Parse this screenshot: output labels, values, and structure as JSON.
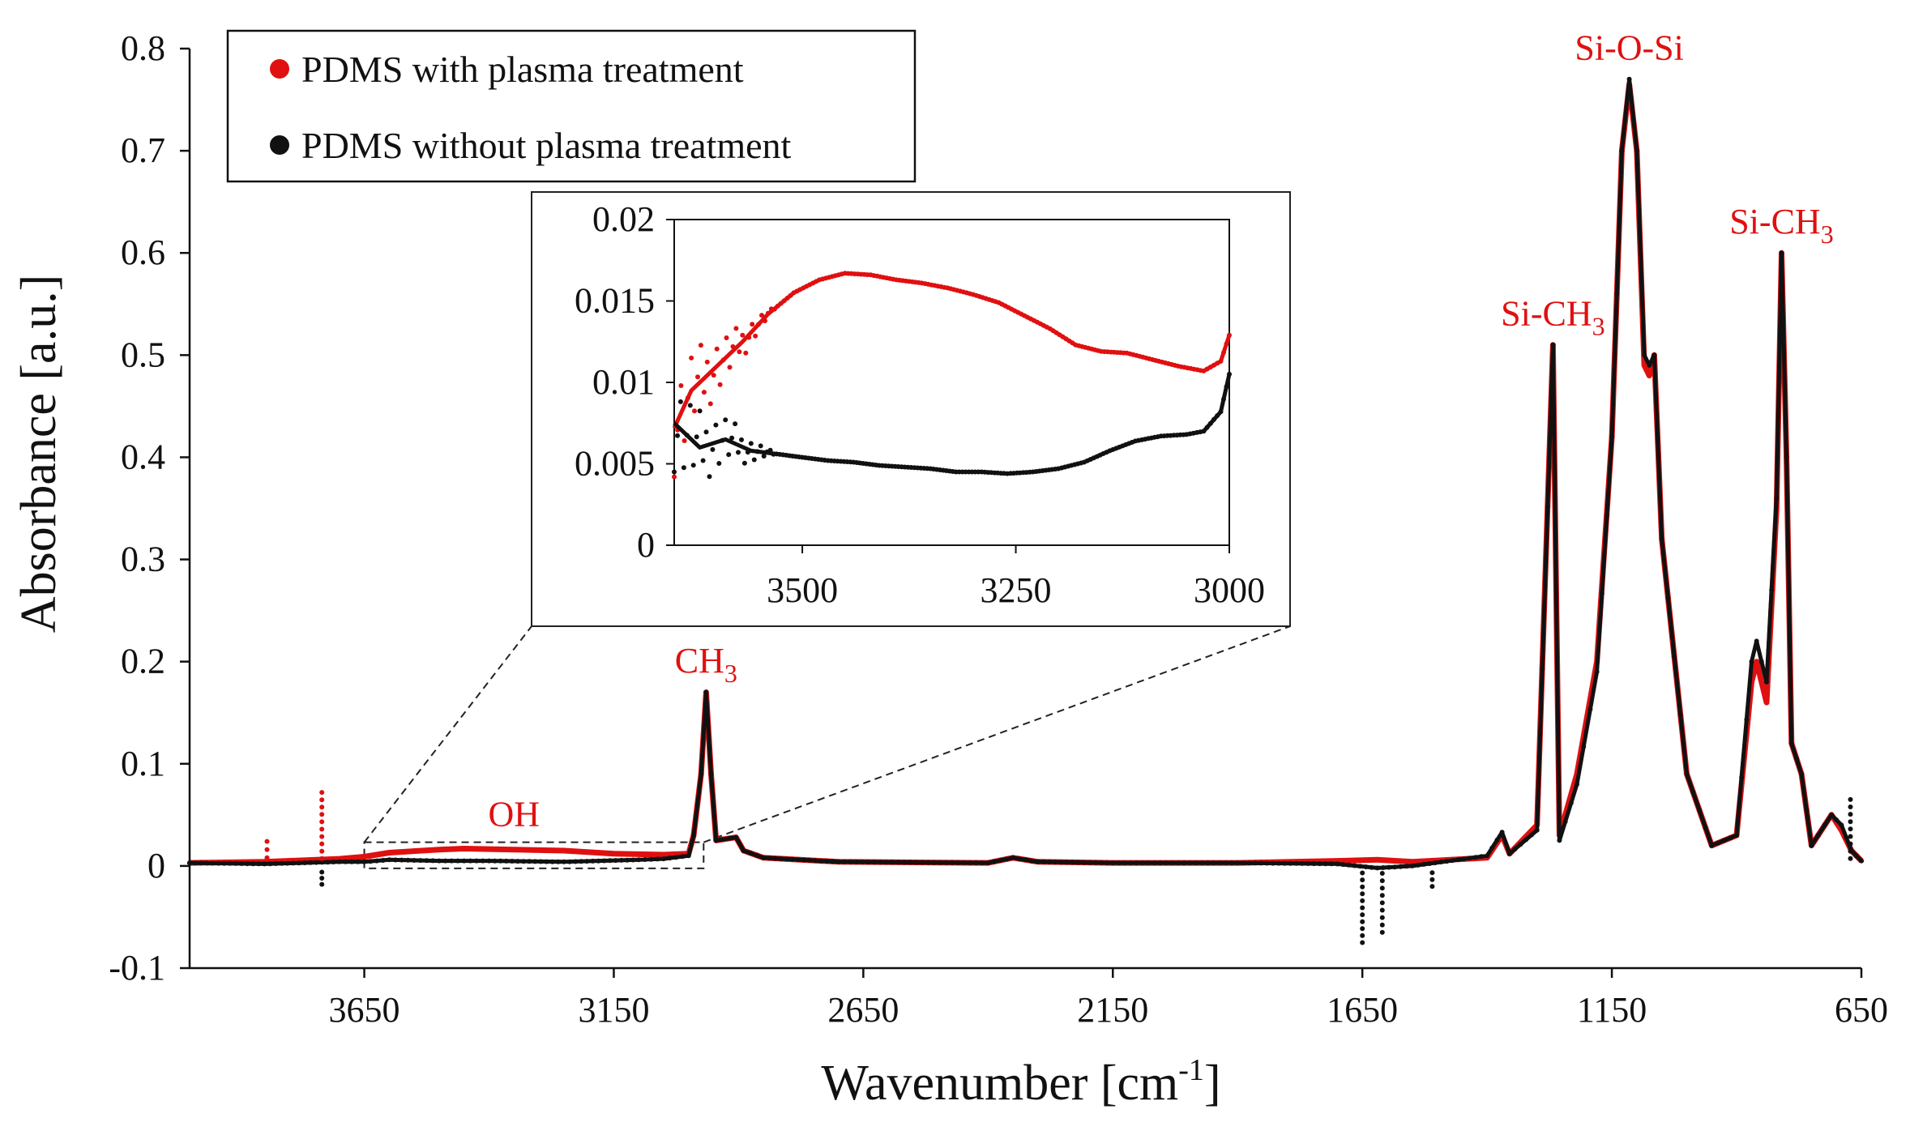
{
  "chart_data": {
    "type": "line",
    "title": "",
    "xlabel_main": "Wavenumber [cm",
    "xlabel_sup": "-1",
    "xlabel_end": "]",
    "ylabel": "Absorbance [a.u.]",
    "xlim": [
      4000,
      650
    ],
    "ylim": [
      -0.1,
      0.8
    ],
    "x_ticks": [
      3650,
      3150,
      2650,
      2150,
      1650,
      1150,
      650
    ],
    "y_ticks": [
      -0.1,
      0,
      0.1,
      0.2,
      0.3,
      0.4,
      0.5,
      0.6,
      0.7,
      0.8
    ],
    "y_tick_labels": [
      "-0.1",
      "0",
      "0.1",
      "0.2",
      "0.3",
      "0.4",
      "0.5",
      "0.6",
      "0.7",
      "0.8"
    ],
    "colors": {
      "plasma": "#e01010",
      "untreated": "#111111"
    },
    "series": [
      {
        "name": "PDMS with plasma treatment",
        "color": "#e01010",
        "points": [
          [
            4000,
            0.003
          ],
          [
            3850,
            0.004
          ],
          [
            3700,
            0.007
          ],
          [
            3650,
            0.009
          ],
          [
            3600,
            0.013
          ],
          [
            3500,
            0.016
          ],
          [
            3450,
            0.017
          ],
          [
            3350,
            0.016
          ],
          [
            3250,
            0.015
          ],
          [
            3150,
            0.012
          ],
          [
            3050,
            0.011
          ],
          [
            3000,
            0.012
          ],
          [
            2990,
            0.03
          ],
          [
            2975,
            0.09
          ],
          [
            2965,
            0.17
          ],
          [
            2955,
            0.09
          ],
          [
            2945,
            0.025
          ],
          [
            2905,
            0.028
          ],
          [
            2890,
            0.015
          ],
          [
            2850,
            0.008
          ],
          [
            2700,
            0.004
          ],
          [
            2400,
            0.003
          ],
          [
            2350,
            0.008
          ],
          [
            2300,
            0.004
          ],
          [
            2150,
            0.003
          ],
          [
            1900,
            0.003
          ],
          [
            1700,
            0.005
          ],
          [
            1620,
            0.006
          ],
          [
            1550,
            0.004
          ],
          [
            1400,
            0.008
          ],
          [
            1370,
            0.03
          ],
          [
            1355,
            0.012
          ],
          [
            1300,
            0.04
          ],
          [
            1268,
            0.51
          ],
          [
            1255,
            0.03
          ],
          [
            1220,
            0.09
          ],
          [
            1180,
            0.2
          ],
          [
            1150,
            0.42
          ],
          [
            1130,
            0.7
          ],
          [
            1115,
            0.765
          ],
          [
            1100,
            0.7
          ],
          [
            1085,
            0.49
          ],
          [
            1075,
            0.48
          ],
          [
            1065,
            0.5
          ],
          [
            1050,
            0.32
          ],
          [
            1000,
            0.09
          ],
          [
            950,
            0.02
          ],
          [
            900,
            0.03
          ],
          [
            870,
            0.18
          ],
          [
            860,
            0.2
          ],
          [
            850,
            0.18
          ],
          [
            840,
            0.16
          ],
          [
            820,
            0.35
          ],
          [
            810,
            0.6
          ],
          [
            800,
            0.4
          ],
          [
            790,
            0.12
          ],
          [
            770,
            0.09
          ],
          [
            750,
            0.02
          ],
          [
            710,
            0.05
          ],
          [
            690,
            0.035
          ],
          [
            670,
            0.015
          ],
          [
            650,
            0.005
          ]
        ]
      },
      {
        "name": "PDMS without plasma treatment",
        "color": "#111111",
        "points": [
          [
            4000,
            0.003
          ],
          [
            3850,
            0.002
          ],
          [
            3700,
            0.004
          ],
          [
            3650,
            0.004
          ],
          [
            3600,
            0.006
          ],
          [
            3500,
            0.005
          ],
          [
            3400,
            0.005
          ],
          [
            3250,
            0.004
          ],
          [
            3100,
            0.006
          ],
          [
            3050,
            0.007
          ],
          [
            3000,
            0.01
          ],
          [
            2990,
            0.03
          ],
          [
            2975,
            0.09
          ],
          [
            2965,
            0.17
          ],
          [
            2955,
            0.09
          ],
          [
            2945,
            0.025
          ],
          [
            2905,
            0.028
          ],
          [
            2890,
            0.015
          ],
          [
            2850,
            0.008
          ],
          [
            2700,
            0.004
          ],
          [
            2400,
            0.003
          ],
          [
            2350,
            0.008
          ],
          [
            2300,
            0.004
          ],
          [
            2150,
            0.003
          ],
          [
            1900,
            0.003
          ],
          [
            1700,
            0.002
          ],
          [
            1620,
            -0.002
          ],
          [
            1550,
            0.0
          ],
          [
            1400,
            0.01
          ],
          [
            1370,
            0.033
          ],
          [
            1355,
            0.012
          ],
          [
            1300,
            0.035
          ],
          [
            1268,
            0.51
          ],
          [
            1255,
            0.025
          ],
          [
            1220,
            0.08
          ],
          [
            1180,
            0.19
          ],
          [
            1150,
            0.42
          ],
          [
            1130,
            0.7
          ],
          [
            1115,
            0.77
          ],
          [
            1100,
            0.7
          ],
          [
            1085,
            0.5
          ],
          [
            1075,
            0.49
          ],
          [
            1065,
            0.5
          ],
          [
            1050,
            0.32
          ],
          [
            1000,
            0.09
          ],
          [
            950,
            0.02
          ],
          [
            900,
            0.03
          ],
          [
            870,
            0.2
          ],
          [
            860,
            0.22
          ],
          [
            850,
            0.2
          ],
          [
            840,
            0.18
          ],
          [
            820,
            0.36
          ],
          [
            810,
            0.6
          ],
          [
            800,
            0.4
          ],
          [
            790,
            0.12
          ],
          [
            770,
            0.09
          ],
          [
            750,
            0.02
          ],
          [
            710,
            0.05
          ],
          [
            690,
            0.04
          ],
          [
            670,
            0.015
          ],
          [
            650,
            0.005
          ]
        ]
      }
    ],
    "outliers": [
      {
        "series": "PDMS with plasma treatment",
        "x": 3845,
        "y": 0.024
      },
      {
        "series": "PDMS with plasma treatment",
        "x": 3735,
        "y": 0.072
      },
      {
        "series": "PDMS without plasma treatment",
        "x": 3735,
        "y": -0.018
      },
      {
        "series": "PDMS without plasma treatment",
        "x": 1650,
        "y": -0.075
      },
      {
        "series": "PDMS without plasma treatment",
        "x": 1610,
        "y": -0.065
      },
      {
        "series": "PDMS without plasma treatment",
        "x": 1510,
        "y": -0.02
      },
      {
        "series": "PDMS without plasma treatment",
        "x": 672,
        "y": 0.065
      }
    ],
    "peak_labels": [
      {
        "text": "OH",
        "sub": "",
        "x": 3350,
        "y": 0.025
      },
      {
        "text": "CH",
        "sub": "3",
        "x": 2965,
        "y": 0.175
      },
      {
        "text": "Si-CH",
        "sub": "3",
        "x": 1268,
        "y": 0.515
      },
      {
        "text": "Si-O-Si",
        "sub": "",
        "x": 1115,
        "y": 0.775
      },
      {
        "text": "Si-CH",
        "sub": "3",
        "x": 810,
        "y": 0.605
      }
    ],
    "zoom_region": {
      "x_range": [
        3650,
        2970
      ],
      "y_range": [
        0,
        0.02
      ]
    },
    "inset": {
      "xlim": [
        3650,
        3000
      ],
      "ylim": [
        0,
        0.02
      ],
      "x_ticks": [
        3500,
        3250,
        3000
      ],
      "y_ticks": [
        0,
        0.005,
        0.01,
        0.015,
        0.02
      ],
      "y_tick_labels": [
        "0",
        "0.005",
        "0.01",
        "0.015",
        "0.02"
      ],
      "series": [
        {
          "name": "PDMS with plasma treatment",
          "color": "#e01010",
          "points": [
            [
              3650,
              0.0072
            ],
            [
              3630,
              0.0095
            ],
            [
              3600,
              0.011
            ],
            [
              3570,
              0.0125
            ],
            [
              3540,
              0.0142
            ],
            [
              3510,
              0.0155
            ],
            [
              3480,
              0.0163
            ],
            [
              3450,
              0.0167
            ],
            [
              3420,
              0.0166
            ],
            [
              3390,
              0.0163
            ],
            [
              3360,
              0.0161
            ],
            [
              3330,
              0.0158
            ],
            [
              3300,
              0.0154
            ],
            [
              3270,
              0.0149
            ],
            [
              3240,
              0.0141
            ],
            [
              3210,
              0.0133
            ],
            [
              3180,
              0.0123
            ],
            [
              3150,
              0.0119
            ],
            [
              3120,
              0.0118
            ],
            [
              3090,
              0.0114
            ],
            [
              3060,
              0.011
            ],
            [
              3030,
              0.0107
            ],
            [
              3010,
              0.0113
            ],
            [
              3000,
              0.0129
            ]
          ]
        },
        {
          "name": "PDMS without plasma treatment",
          "color": "#111111",
          "points": [
            [
              3650,
              0.0075
            ],
            [
              3620,
              0.006
            ],
            [
              3590,
              0.0065
            ],
            [
              3560,
              0.0058
            ],
            [
              3530,
              0.0056
            ],
            [
              3500,
              0.0054
            ],
            [
              3470,
              0.0052
            ],
            [
              3440,
              0.0051
            ],
            [
              3410,
              0.0049
            ],
            [
              3380,
              0.0048
            ],
            [
              3350,
              0.0047
            ],
            [
              3320,
              0.0045
            ],
            [
              3290,
              0.0045
            ],
            [
              3260,
              0.0044
            ],
            [
              3230,
              0.0045
            ],
            [
              3200,
              0.0047
            ],
            [
              3170,
              0.0051
            ],
            [
              3140,
              0.0058
            ],
            [
              3110,
              0.0064
            ],
            [
              3080,
              0.0067
            ],
            [
              3050,
              0.0068
            ],
            [
              3030,
              0.007
            ],
            [
              3010,
              0.0082
            ],
            [
              3000,
              0.0105
            ]
          ]
        }
      ]
    },
    "legend": {
      "position": "top-left",
      "items": [
        {
          "label": "PDMS with plasma treatment",
          "color": "#e01010"
        },
        {
          "label": "PDMS without plasma treatment",
          "color": "#111111"
        }
      ]
    }
  }
}
